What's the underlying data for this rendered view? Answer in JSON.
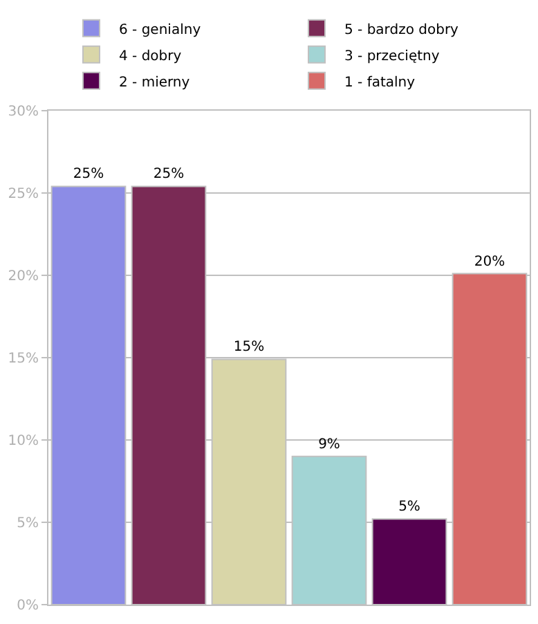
{
  "chart_data": {
    "type": "bar",
    "categories": [
      null,
      null,
      null,
      null,
      null,
      null
    ],
    "series": [
      {
        "name": "6 - genialny",
        "color": "#8c8ce6",
        "values": [
          25.4,
          null,
          null,
          null,
          null,
          null
        ],
        "value_labels": [
          "25%",
          null,
          null,
          null,
          null,
          null
        ]
      },
      {
        "name": "5 - bardzo dobry",
        "color": "#7a2a55",
        "values": [
          null,
          25.4,
          null,
          null,
          null,
          null
        ],
        "value_labels": [
          null,
          "25%",
          null,
          null,
          null,
          null
        ]
      },
      {
        "name": "4 - dobry",
        "color": "#d9d6a8",
        "values": [
          null,
          null,
          14.9,
          null,
          null,
          null
        ],
        "value_labels": [
          null,
          null,
          "15%",
          null,
          null,
          null
        ]
      },
      {
        "name": "3 - przeciętny",
        "color": "#a2d4d4",
        "values": [
          null,
          null,
          null,
          9.0,
          null,
          null
        ],
        "value_labels": [
          null,
          null,
          null,
          "9%",
          null,
          null
        ]
      },
      {
        "name": "2 - mierny",
        "color": "#55004f",
        "values": [
          null,
          null,
          null,
          null,
          5.2,
          null
        ],
        "value_labels": [
          null,
          null,
          null,
          null,
          "5%",
          null
        ]
      },
      {
        "name": "1 - fatalny",
        "color": "#d86a68",
        "values": [
          null,
          null,
          null,
          null,
          null,
          20.1
        ],
        "value_labels": [
          null,
          null,
          null,
          null,
          null,
          "20%"
        ]
      }
    ],
    "ylim": [
      0,
      30
    ],
    "yticks": [
      {
        "value": 0,
        "label": "0%"
      },
      {
        "value": 5,
        "label": "5%"
      },
      {
        "value": 10,
        "label": "10%"
      },
      {
        "value": 15,
        "label": "15%"
      },
      {
        "value": 20,
        "label": "20%"
      },
      {
        "value": 25,
        "label": "25%"
      },
      {
        "value": 30,
        "label": "30%"
      }
    ],
    "grid": "y",
    "legend": "top",
    "tick_labels": "y"
  }
}
